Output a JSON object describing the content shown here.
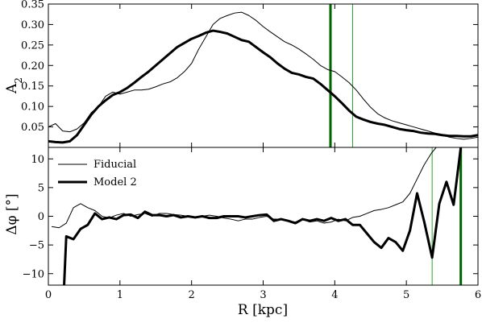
{
  "chart_data": [
    {
      "panel": "top",
      "type": "line",
      "xlabel": "",
      "ylabel": "A",
      "ylabel_sub": "2",
      "xlim": [
        0,
        6
      ],
      "ylim": [
        0,
        0.35
      ],
      "xticks": [
        0,
        1,
        2,
        3,
        4,
        5,
        6
      ],
      "yticks": [
        0.05,
        0.1,
        0.15,
        0.2,
        0.25,
        0.3,
        0.35
      ],
      "ytick_labels": [
        "0.05",
        "0.10",
        "0.15",
        "0.20",
        "0.25",
        "0.30",
        "0.35"
      ],
      "grid": false,
      "vlines": [
        {
          "x": 3.94,
          "width": "thick",
          "color": "#006400"
        },
        {
          "x": 4.25,
          "width": "thin",
          "color": "#2ca02c"
        }
      ],
      "series": [
        {
          "name": "Fiducial",
          "color": "#000000",
          "width": "thin",
          "x": [
            0.0,
            0.1,
            0.2,
            0.3,
            0.4,
            0.5,
            0.6,
            0.7,
            0.8,
            0.9,
            1.0,
            1.1,
            1.2,
            1.3,
            1.4,
            1.5,
            1.6,
            1.7,
            1.8,
            1.9,
            2.0,
            2.1,
            2.2,
            2.3,
            2.4,
            2.5,
            2.6,
            2.7,
            2.8,
            2.9,
            3.0,
            3.1,
            3.2,
            3.3,
            3.4,
            3.5,
            3.6,
            3.7,
            3.8,
            3.9,
            4.0,
            4.1,
            4.2,
            4.3,
            4.4,
            4.5,
            4.6,
            4.7,
            4.8,
            4.9,
            5.0,
            5.1,
            5.2,
            5.3,
            5.4,
            5.5,
            5.6,
            5.7,
            5.8,
            5.9,
            6.0
          ],
          "y": [
            0.05,
            0.058,
            0.04,
            0.038,
            0.045,
            0.06,
            0.085,
            0.1,
            0.125,
            0.135,
            0.13,
            0.135,
            0.14,
            0.14,
            0.142,
            0.148,
            0.155,
            0.16,
            0.17,
            0.185,
            0.205,
            0.24,
            0.27,
            0.3,
            0.315,
            0.322,
            0.328,
            0.33,
            0.322,
            0.31,
            0.295,
            0.282,
            0.27,
            0.258,
            0.25,
            0.24,
            0.228,
            0.215,
            0.2,
            0.19,
            0.185,
            0.172,
            0.158,
            0.14,
            0.118,
            0.098,
            0.082,
            0.072,
            0.065,
            0.06,
            0.055,
            0.05,
            0.045,
            0.04,
            0.035,
            0.03,
            0.025,
            0.022,
            0.02,
            0.022,
            0.025
          ]
        },
        {
          "name": "Model 2",
          "color": "#000000",
          "width": "thick",
          "x": [
            0.0,
            0.1,
            0.2,
            0.3,
            0.4,
            0.5,
            0.6,
            0.7,
            0.8,
            0.9,
            1.0,
            1.1,
            1.2,
            1.3,
            1.4,
            1.5,
            1.6,
            1.7,
            1.8,
            1.9,
            2.0,
            2.1,
            2.2,
            2.3,
            2.4,
            2.5,
            2.6,
            2.7,
            2.8,
            2.9,
            3.0,
            3.1,
            3.2,
            3.3,
            3.4,
            3.5,
            3.6,
            3.7,
            3.8,
            3.9,
            4.0,
            4.1,
            4.2,
            4.3,
            4.4,
            4.5,
            4.6,
            4.7,
            4.8,
            4.9,
            5.0,
            5.1,
            5.2,
            5.3,
            5.4,
            5.5,
            5.6,
            5.7,
            5.8,
            5.9,
            6.0
          ],
          "y": [
            0.015,
            0.013,
            0.012,
            0.015,
            0.03,
            0.055,
            0.08,
            0.1,
            0.115,
            0.128,
            0.135,
            0.145,
            0.158,
            0.172,
            0.185,
            0.2,
            0.215,
            0.23,
            0.245,
            0.255,
            0.265,
            0.272,
            0.28,
            0.285,
            0.282,
            0.278,
            0.27,
            0.262,
            0.258,
            0.245,
            0.232,
            0.22,
            0.205,
            0.192,
            0.182,
            0.178,
            0.172,
            0.168,
            0.155,
            0.14,
            0.125,
            0.108,
            0.09,
            0.075,
            0.068,
            0.062,
            0.058,
            0.055,
            0.05,
            0.045,
            0.042,
            0.04,
            0.036,
            0.034,
            0.033,
            0.03,
            0.028,
            0.028,
            0.027,
            0.027,
            0.03
          ]
        }
      ]
    },
    {
      "panel": "bottom",
      "type": "line",
      "xlabel": "R [kpc]",
      "ylabel": "Δφ [°]",
      "xlim": [
        0,
        6
      ],
      "ylim": [
        -12,
        12
      ],
      "xticks": [
        0,
        1,
        2,
        3,
        4,
        5,
        6
      ],
      "xtick_labels": [
        "0",
        "1",
        "2",
        "3",
        "4",
        "5",
        "6"
      ],
      "yticks": [
        -10,
        -5,
        0,
        5,
        10
      ],
      "ytick_labels": [
        "−10",
        "−5",
        "0",
        "5",
        "10"
      ],
      "grid": false,
      "legend": "top-left",
      "vlines": [
        {
          "x": 5.36,
          "width": "thin",
          "color": "#2ca02c"
        },
        {
          "x": 5.76,
          "width": "thick",
          "color": "#006400"
        }
      ],
      "series": [
        {
          "name": "Fiducial",
          "color": "#000000",
          "width": "thin",
          "x": [
            0.05,
            0.15,
            0.25,
            0.35,
            0.45,
            0.55,
            0.65,
            0.75,
            0.85,
            0.95,
            1.05,
            1.15,
            1.25,
            1.35,
            1.45,
            1.55,
            1.65,
            1.75,
            1.85,
            1.95,
            2.05,
            2.15,
            2.25,
            2.35,
            2.45,
            2.55,
            2.65,
            2.75,
            2.85,
            2.95,
            3.05,
            3.15,
            3.25,
            3.35,
            3.45,
            3.55,
            3.65,
            3.75,
            3.85,
            3.95,
            4.05,
            4.15,
            4.25,
            4.35,
            4.45,
            4.55,
            4.65,
            4.75,
            4.85,
            4.95,
            5.05,
            5.15,
            5.25,
            5.35,
            5.45,
            5.55,
            5.65
          ],
          "y": [
            -1.8,
            -2.0,
            -1.2,
            1.5,
            2.2,
            1.5,
            1.0,
            0.0,
            -0.3,
            0.2,
            0.5,
            0.0,
            0.3,
            0.5,
            0.0,
            0.5,
            0.5,
            0.3,
            0.2,
            0.0,
            -0.2,
            0.0,
            0.2,
            0.0,
            -0.3,
            -0.5,
            -0.8,
            -0.5,
            -0.5,
            -0.2,
            0.0,
            -0.5,
            -0.5,
            -0.8,
            -1.0,
            -0.5,
            -1.0,
            -0.8,
            -1.2,
            -1.0,
            -0.5,
            -0.8,
            -0.2,
            0.0,
            0.5,
            1.0,
            1.2,
            1.5,
            2.0,
            2.5,
            4.0,
            6.5,
            9.0,
            11.0,
            12.5,
            12.0,
            12.5
          ]
        },
        {
          "name": "Model 2",
          "color": "#000000",
          "width": "thick",
          "x": [
            0.22,
            0.25,
            0.35,
            0.45,
            0.55,
            0.65,
            0.75,
            0.85,
            0.95,
            1.05,
            1.15,
            1.25,
            1.35,
            1.45,
            1.55,
            1.65,
            1.75,
            1.85,
            1.95,
            2.05,
            2.15,
            2.25,
            2.35,
            2.45,
            2.55,
            2.65,
            2.75,
            2.85,
            2.95,
            3.05,
            3.15,
            3.25,
            3.35,
            3.45,
            3.55,
            3.65,
            3.75,
            3.85,
            3.95,
            4.05,
            4.15,
            4.25,
            4.35,
            4.45,
            4.55,
            4.65,
            4.75,
            4.85,
            4.95,
            5.05,
            5.15,
            5.25,
            5.36,
            5.46,
            5.56,
            5.66,
            5.76
          ],
          "y": [
            -12.0,
            -3.5,
            -4.0,
            -2.2,
            -1.5,
            0.5,
            -0.5,
            -0.2,
            -0.5,
            0.2,
            0.3,
            -0.3,
            0.8,
            0.2,
            0.2,
            0.0,
            0.2,
            -0.2,
            0.0,
            -0.2,
            0.0,
            -0.3,
            -0.3,
            0.0,
            0.0,
            0.0,
            -0.2,
            0.0,
            0.2,
            0.3,
            -0.8,
            -0.5,
            -0.8,
            -1.2,
            -0.5,
            -0.8,
            -0.5,
            -0.8,
            -0.3,
            -0.8,
            -0.5,
            -1.5,
            -1.5,
            -3.0,
            -4.5,
            -5.5,
            -3.8,
            -4.5,
            -6.0,
            -2.5,
            4.0,
            -1.0,
            -7.2,
            2.2,
            6.0,
            2.0,
            12.0
          ]
        }
      ]
    }
  ],
  "legend": {
    "items": [
      {
        "label": "Fiducial",
        "width": "thin"
      },
      {
        "label": "Model 2",
        "width": "thick"
      }
    ]
  }
}
